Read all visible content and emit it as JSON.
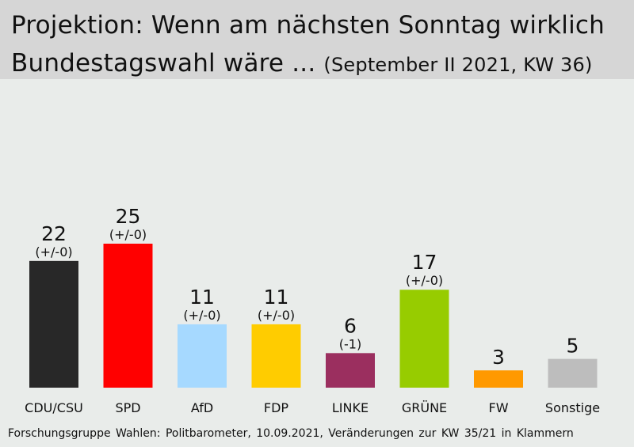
{
  "title": {
    "line1": "Projektion: Wenn am nächsten Sonntag wirklich",
    "line2": "Bundestagswahl wäre ...",
    "subtitle": "(September II 2021, KW 36)"
  },
  "footer": "Forschungsgruppe  Wahlen: Politbarometer, 10.09.2021,  Veränderungen  zur  KW 35/21  in Klammern",
  "chart_data": {
    "type": "bar",
    "title": "Projektion: Wenn am nächsten Sonntag wirklich Bundestagswahl wäre ... (September II 2021, KW 36)",
    "categories": [
      "CDU/CSU",
      "SPD",
      "AfD",
      "FDP",
      "LINKE",
      "GRÜNE",
      "FW",
      "Sonstige"
    ],
    "values": [
      22,
      25,
      11,
      11,
      6,
      17,
      3,
      5
    ],
    "changes": [
      "(+/-0)",
      "(+/-0)",
      "(+/-0)",
      "(+/-0)",
      "(-1)",
      "(+/-0)",
      "",
      ""
    ],
    "colors": [
      "#282828",
      "#ff0000",
      "#a6d9ff",
      "#ffcc00",
      "#9b2f5f",
      "#97cc00",
      "#ff9900",
      "#bdbdbd"
    ],
    "ylim": [
      0,
      25
    ],
    "grid": false,
    "legend": "none"
  }
}
